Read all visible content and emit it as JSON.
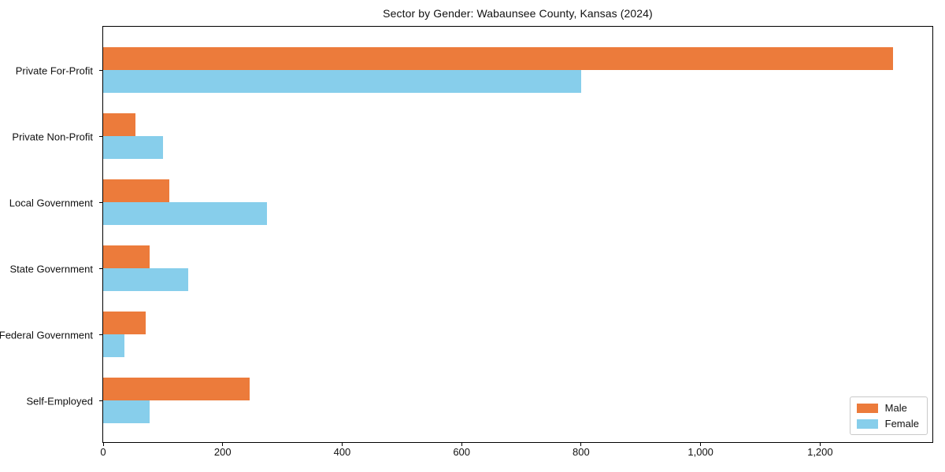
{
  "chart_data": {
    "type": "bar",
    "orientation": "horizontal",
    "title": "Sector by Gender: Wabaunsee County, Kansas (2024)",
    "categories": [
      "Private For-Profit",
      "Private Non-Profit",
      "Local Government",
      "State Government",
      "Federal Government",
      "Self-Employed"
    ],
    "series": [
      {
        "name": "Male",
        "color": "#EC7B3B",
        "values": [
          1322,
          54,
          111,
          78,
          71,
          245
        ]
      },
      {
        "name": "Female",
        "color": "#87CEEB",
        "values": [
          800,
          100,
          274,
          142,
          36,
          78
        ]
      }
    ],
    "xlabel": "",
    "ylabel": "",
    "xlim": [
      0,
      1388
    ],
    "xticks": [
      0,
      200,
      400,
      600,
      800,
      1000,
      1200
    ],
    "xtick_labels": [
      "0",
      "200",
      "400",
      "600",
      "800",
      "1,000",
      "1,200"
    ],
    "grid": false,
    "legend_position": "lower right",
    "axis_color": "#000000",
    "legend_border_color": "#c9c9c9"
  }
}
